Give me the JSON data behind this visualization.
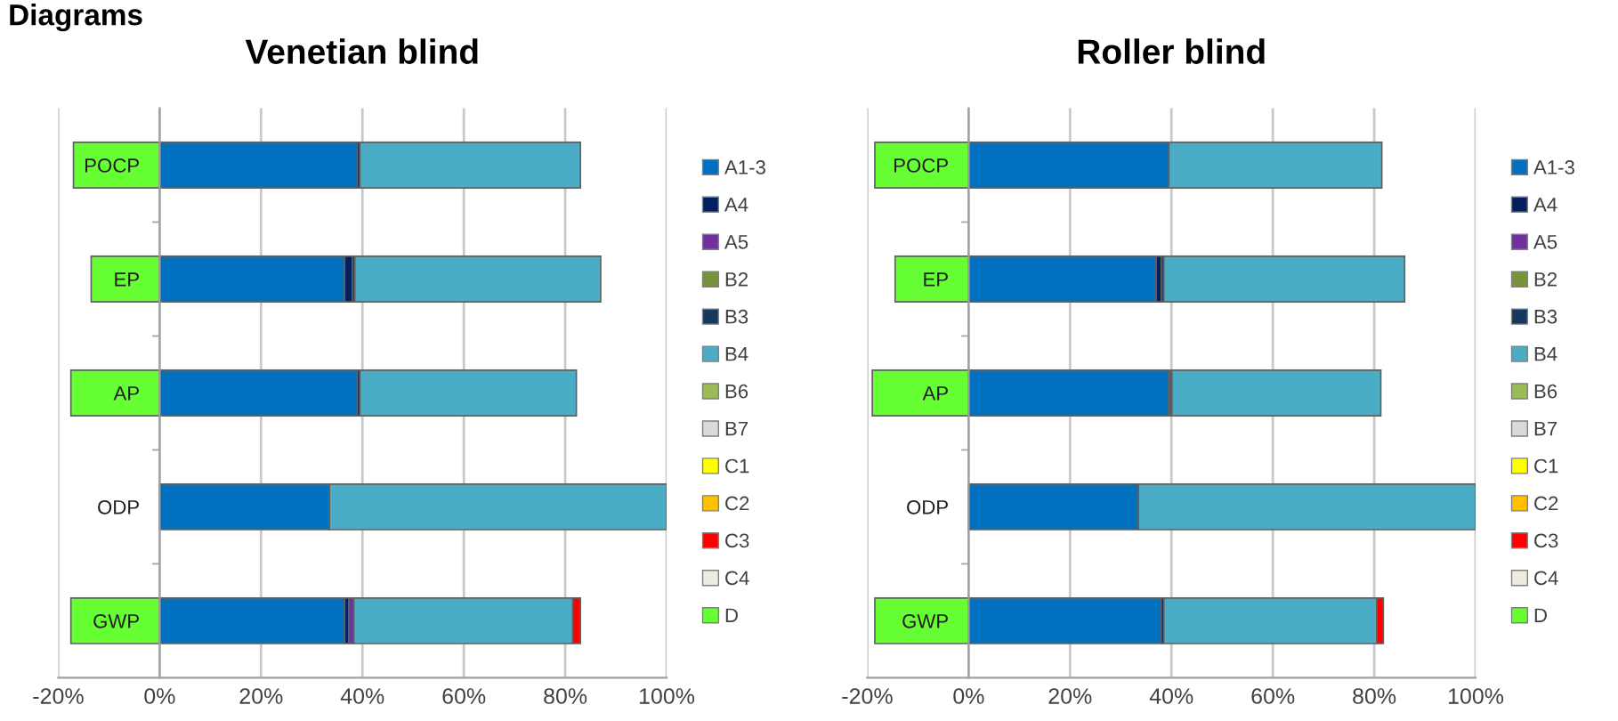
{
  "chart_data": [
    {
      "type": "bar",
      "orientation": "horizontal",
      "stacked": true,
      "title": "Venetian blind",
      "annotations": [
        "Diagrams"
      ],
      "categories": [
        "POCP",
        "EP",
        "AP",
        "ODP",
        "GWP"
      ],
      "xlim": [
        -20,
        100
      ],
      "xticks": [
        {
          "value": -20,
          "label": "-20%"
        },
        {
          "value": 0,
          "label": "0%"
        },
        {
          "value": 20,
          "label": "20%"
        },
        {
          "value": 40,
          "label": "40%"
        },
        {
          "value": 60,
          "label": "60%"
        },
        {
          "value": 80,
          "label": "80%"
        },
        {
          "value": 100,
          "label": "100%"
        }
      ],
      "grid": "x",
      "legend": "right",
      "series": [
        {
          "name": "A1-3",
          "color": "#0070c0",
          "values": [
            39,
            36.5,
            39,
            33.5,
            36.5
          ]
        },
        {
          "name": "A4",
          "color": "#002060",
          "values": [
            0.5,
            1.5,
            0.5,
            0,
            0.8
          ]
        },
        {
          "name": "A5",
          "color": "#7030a0",
          "values": [
            0,
            0,
            0,
            0,
            1
          ]
        },
        {
          "name": "B2",
          "color": "#77933c",
          "values": [
            0,
            0,
            0,
            0,
            0
          ]
        },
        {
          "name": "B3",
          "color": "#17375e",
          "values": [
            0,
            0.5,
            null,
            0,
            0
          ]
        },
        {
          "name": "B4",
          "color": "#4bacc6",
          "values": [
            43.5,
            48.5,
            42.7,
            66.5,
            43.2
          ]
        },
        {
          "name": "B6",
          "color": "#9bbb59",
          "values": [
            0,
            0,
            0,
            0,
            0
          ]
        },
        {
          "name": "B7",
          "color": "#d9d9d9",
          "values": [
            0,
            0,
            0,
            0,
            0
          ]
        },
        {
          "name": "C1",
          "color": "#ffff00",
          "values": [
            0,
            0,
            0,
            0,
            0
          ]
        },
        {
          "name": "C2",
          "color": "#ffc000",
          "values": [
            0,
            0,
            0,
            0,
            0
          ]
        },
        {
          "name": "C3",
          "color": "#ff0000",
          "values": [
            0,
            0,
            0,
            0,
            1.5
          ]
        },
        {
          "name": "C4",
          "color": "#eeece1",
          "values": [
            0,
            0,
            0,
            0,
            0
          ]
        },
        {
          "name": "D",
          "color": "#66ff33",
          "values": [
            -17,
            -13.5,
            -17.5,
            0,
            -17.5
          ]
        }
      ]
    },
    {
      "type": "bar",
      "orientation": "horizontal",
      "stacked": true,
      "title": "Roller blind",
      "categories": [
        "POCP",
        "EP",
        "AP",
        "ODP",
        "GWP"
      ],
      "xlim": [
        -20,
        100
      ],
      "xticks": [
        {
          "value": -20,
          "label": "-20%"
        },
        {
          "value": 0,
          "label": "0%"
        },
        {
          "value": 20,
          "label": "20%"
        },
        {
          "value": 40,
          "label": "40%"
        },
        {
          "value": 60,
          "label": "60%"
        },
        {
          "value": 80,
          "label": "80%"
        },
        {
          "value": 100,
          "label": "100%"
        }
      ],
      "grid": "x",
      "legend": "right",
      "series": [
        {
          "name": "A1-3",
          "color": "#0070c0",
          "values": [
            39.5,
            37,
            39.5,
            33.5,
            38
          ]
        },
        {
          "name": "A4",
          "color": "#002060",
          "values": [
            0,
            1,
            0.3,
            0,
            0.5
          ]
        },
        {
          "name": "A5",
          "color": "#7030a0",
          "values": [
            0,
            0,
            0,
            0,
            0
          ]
        },
        {
          "name": "B2",
          "color": "#77933c",
          "values": [
            0,
            0,
            0,
            0,
            0
          ]
        },
        {
          "name": "B3",
          "color": "#17375e",
          "values": [
            null,
            0.5,
            0.3,
            0,
            0
          ]
        },
        {
          "name": "B4",
          "color": "#4bacc6",
          "values": [
            42,
            47.5,
            41.2,
            66.5,
            42
          ]
        },
        {
          "name": "B6",
          "color": "#9bbb59",
          "values": [
            0,
            0,
            0,
            0,
            0
          ]
        },
        {
          "name": "B7",
          "color": "#d9d9d9",
          "values": [
            0,
            0,
            0,
            0,
            0
          ]
        },
        {
          "name": "C1",
          "color": "#ffff00",
          "values": [
            0,
            0,
            0,
            0,
            0
          ]
        },
        {
          "name": "C2",
          "color": "#ffc000",
          "values": [
            0,
            0,
            0,
            0,
            0
          ]
        },
        {
          "name": "C3",
          "color": "#ff0000",
          "values": [
            0,
            0,
            0,
            0,
            1.3
          ]
        },
        {
          "name": "C4",
          "color": "#eeece1",
          "values": [
            0,
            0,
            0,
            0,
            0
          ]
        },
        {
          "name": "D",
          "color": "#66ff33",
          "values": [
            -18.5,
            -14.5,
            -19,
            0,
            -18.5
          ]
        }
      ]
    }
  ]
}
